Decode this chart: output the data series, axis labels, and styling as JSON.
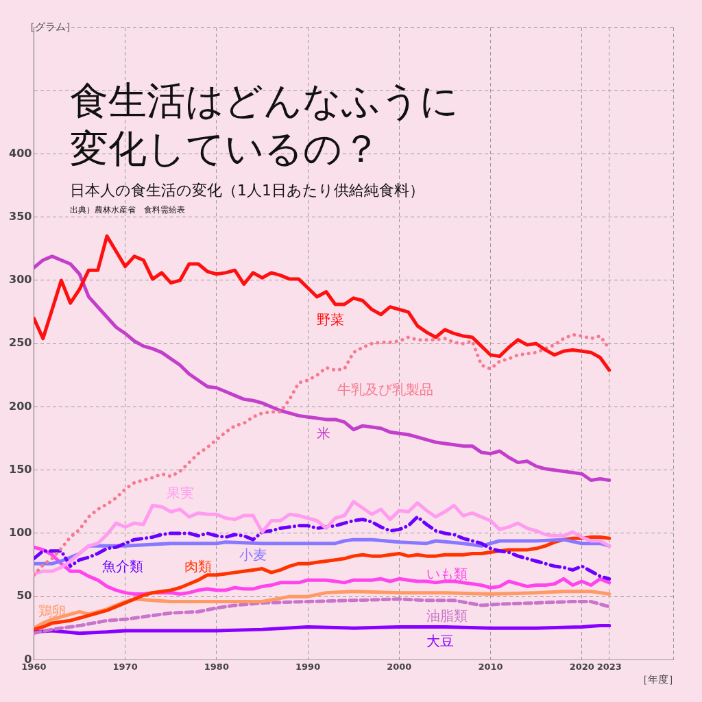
{
  "chart_data": {
    "type": "line",
    "title": "食生活はどんなふうに変化しているの？",
    "subtitle": "日本人の食生活の変化（1人1日あたり供給純食料）",
    "ylabel": "［グラム］",
    "xlabel": "［年度］",
    "annotations": [
      "出典）農林水産省　食料需給表"
    ],
    "xlim": [
      1960,
      2030
    ],
    "xticks": [
      1960,
      1970,
      1980,
      1990,
      2000,
      2010,
      2020,
      2023,
      {
        "value": 2030,
        "label": null
      }
    ],
    "ylim": [
      0,
      500
    ],
    "yticks": [
      0,
      50,
      100,
      150,
      200,
      250,
      300,
      350,
      400,
      {
        "value": 450,
        "label": null
      },
      {
        "value": 500,
        "label": null
      }
    ],
    "grid": true,
    "legend": false,
    "marker": "none",
    "x": [
      1960,
      1961,
      1962,
      1963,
      1964,
      1965,
      1966,
      1967,
      1968,
      1969,
      1970,
      1971,
      1972,
      1973,
      1974,
      1975,
      1976,
      1977,
      1978,
      1979,
      1980,
      1981,
      1982,
      1983,
      1984,
      1985,
      1986,
      1987,
      1988,
      1989,
      1990,
      1991,
      1992,
      1993,
      1994,
      1995,
      1996,
      1997,
      1998,
      1999,
      2000,
      2001,
      2002,
      2003,
      2004,
      2005,
      2006,
      2007,
      2008,
      2009,
      2010,
      2011,
      2012,
      2013,
      2014,
      2015,
      2016,
      2017,
      2018,
      2019,
      2020,
      2021,
      2022,
      2023
    ],
    "series": [
      {
        "name": "野菜",
        "color": "#ff1010",
        "line_style": "solid",
        "values": [
          270,
          254,
          277,
          300,
          282,
          293,
          308,
          308,
          335,
          323,
          311,
          319,
          316,
          301,
          306,
          298,
          300,
          313,
          313,
          307,
          305,
          306,
          308,
          297,
          306,
          302,
          306,
          304,
          301,
          301,
          294,
          287,
          291,
          281,
          281,
          286,
          284,
          277,
          273,
          279,
          277,
          275,
          264,
          259,
          255,
          261,
          258,
          256,
          255,
          248,
          241,
          240,
          247,
          253,
          249,
          250,
          245,
          241,
          244,
          245,
          244,
          243,
          239,
          229
        ]
      },
      {
        "name": "牛乳及び乳製品",
        "color": "#f47a92",
        "line_style": "dotted",
        "values": [
          67,
          75,
          80,
          88,
          97,
          103,
          113,
          119,
          123,
          128,
          135,
          140,
          142,
          144,
          147,
          145,
          149,
          156,
          163,
          168,
          174,
          180,
          185,
          187,
          192,
          195,
          196,
          196,
          206,
          219,
          221,
          225,
          231,
          229,
          230,
          243,
          247,
          250,
          251,
          251,
          252,
          255,
          253,
          253,
          253,
          254,
          251,
          250,
          252,
          233,
          230,
          236,
          238,
          241,
          242,
          243,
          246,
          249,
          254,
          257,
          256,
          254,
          256,
          246
        ]
      },
      {
        "name": "米",
        "color": "#c23fcc",
        "line_style": "solid",
        "values": [
          310,
          316,
          319,
          316,
          313,
          305,
          287,
          279,
          271,
          263,
          258,
          252,
          248,
          246,
          243,
          238,
          233,
          226,
          221,
          216,
          215,
          212,
          209,
          206,
          205,
          203,
          200,
          197,
          195,
          193,
          192,
          191,
          190,
          190,
          188,
          182,
          185,
          184,
          183,
          180,
          179,
          178,
          176,
          174,
          172,
          171,
          170,
          169,
          169,
          164,
          163,
          165,
          160,
          156,
          157,
          153,
          151,
          150,
          149,
          148,
          147,
          142,
          143,
          142
        ]
      },
      {
        "name": "果実",
        "color": "#ff9cf0",
        "line_style": "solid",
        "values": [
          68,
          70,
          70,
          73,
          78,
          84,
          90,
          92,
          99,
          108,
          105,
          108,
          107,
          122,
          121,
          117,
          119,
          113,
          116,
          115,
          115,
          112,
          111,
          114,
          114,
          101,
          110,
          110,
          115,
          114,
          112,
          110,
          104,
          112,
          114,
          125,
          120,
          115,
          119,
          111,
          118,
          117,
          124,
          118,
          113,
          117,
          122,
          114,
          116,
          113,
          110,
          103,
          105,
          108,
          104,
          102,
          99,
          98,
          98,
          101,
          97,
          94,
          94,
          90
        ]
      },
      {
        "name": "魚介類",
        "color": "#6a00ff",
        "line_style": "dashdot",
        "values": [
          80,
          86,
          86,
          86,
          74,
          79,
          81,
          84,
          88,
          89,
          92,
          95,
          96,
          97,
          99,
          100,
          100,
          100,
          98,
          100,
          98,
          97,
          99,
          98,
          95,
          101,
          102,
          104,
          105,
          106,
          106,
          104,
          105,
          106,
          108,
          110,
          111,
          109,
          105,
          102,
          103,
          106,
          113,
          107,
          102,
          100,
          99,
          96,
          94,
          92,
          88,
          86,
          85,
          82,
          80,
          78,
          76,
          74,
          73,
          71,
          74,
          70,
          66,
          64
        ]
      },
      {
        "name": "小麦",
        "color": "#8877ff",
        "line_style": "solid",
        "x": [
          1960,
          1962,
          1963,
          1964,
          1965,
          1966,
          1970,
          1975,
          1980,
          1981,
          1985,
          1990,
          1993,
          1994,
          1995,
          1997,
          2000,
          2003,
          2004,
          2007,
          2009,
          2011,
          2015,
          2018,
          2020,
          2022,
          2023
        ],
        "values": [
          76,
          76,
          78,
          81,
          84,
          90,
          90,
          92,
          92,
          93,
          92,
          92,
          92,
          94,
          95,
          95,
          93,
          92,
          94,
          92,
          90,
          94,
          94,
          95,
          92,
          92,
          90
        ]
      },
      {
        "name": "肉類",
        "color": "#ff3300",
        "line_style": "solid",
        "values": [
          24,
          26,
          29,
          30,
          31,
          33,
          35,
          37,
          39,
          42,
          45,
          48,
          51,
          53,
          54,
          55,
          57,
          60,
          63,
          67,
          67,
          68,
          69,
          70,
          71,
          72,
          69,
          71,
          74,
          76,
          76,
          77,
          78,
          79,
          80,
          82,
          83,
          82,
          82,
          83,
          84,
          82,
          83,
          82,
          82,
          83,
          83,
          83,
          84,
          84,
          85,
          86,
          87,
          87,
          87,
          88,
          90,
          93,
          95,
          96,
          96,
          97,
          97,
          96
        ]
      },
      {
        "name": "いも類",
        "color": "#ff44ee",
        "line_style": "solid",
        "values": [
          89,
          87,
          83,
          76,
          70,
          70,
          66,
          63,
          58,
          55,
          53,
          52,
          52,
          53,
          53,
          53,
          52,
          53,
          55,
          56,
          55,
          55,
          57,
          56,
          56,
          58,
          59,
          61,
          61,
          61,
          63,
          63,
          63,
          62,
          61,
          63,
          63,
          63,
          64,
          62,
          64,
          63,
          62,
          62,
          61,
          62,
          62,
          61,
          60,
          59,
          57,
          58,
          62,
          60,
          58,
          59,
          59,
          60,
          64,
          59,
          62,
          59,
          64,
          61
        ]
      },
      {
        "name": "鶏卵",
        "color": "#ff9966",
        "line_style": "solid",
        "x": [
          1960,
          1961,
          1962,
          1964,
          1965,
          1966,
          1968,
          1970,
          1971,
          1973,
          1975,
          1980,
          1985,
          1988,
          1990,
          1992,
          1995,
          2000,
          2005,
          2010,
          2015,
          2018,
          2021,
          2023
        ],
        "values": [
          25,
          29,
          32,
          36,
          38,
          36,
          40,
          46,
          48,
          47,
          46,
          46,
          46,
          50,
          50,
          53,
          54,
          53,
          53,
          52,
          53,
          54,
          54,
          52
        ]
      },
      {
        "name": "油脂類",
        "color": "#c873cc",
        "line_style": "dashed",
        "x": [
          1960,
          1962,
          1965,
          1968,
          1970,
          1973,
          1975,
          1978,
          1980,
          1982,
          1985,
          1990,
          1995,
          2000,
          2003,
          2006,
          2009,
          2011,
          2015,
          2019,
          2021,
          2023
        ],
        "values": [
          21,
          24,
          27,
          31,
          32,
          35,
          37,
          38,
          41,
          43,
          45,
          46,
          47,
          48,
          47,
          47,
          43,
          44,
          45,
          46,
          46,
          42
        ]
      },
      {
        "name": "大豆",
        "color": "#8800ff",
        "line_style": "solid",
        "x": [
          1960,
          1962,
          1965,
          1968,
          1970,
          1975,
          1980,
          1985,
          1990,
          1995,
          2000,
          2005,
          2010,
          2015,
          2020,
          2022,
          2023
        ],
        "values": [
          22,
          23,
          21,
          22,
          23,
          23,
          23,
          24,
          26,
          25,
          26,
          26,
          25,
          25,
          26,
          27,
          27
        ]
      }
    ]
  }
}
